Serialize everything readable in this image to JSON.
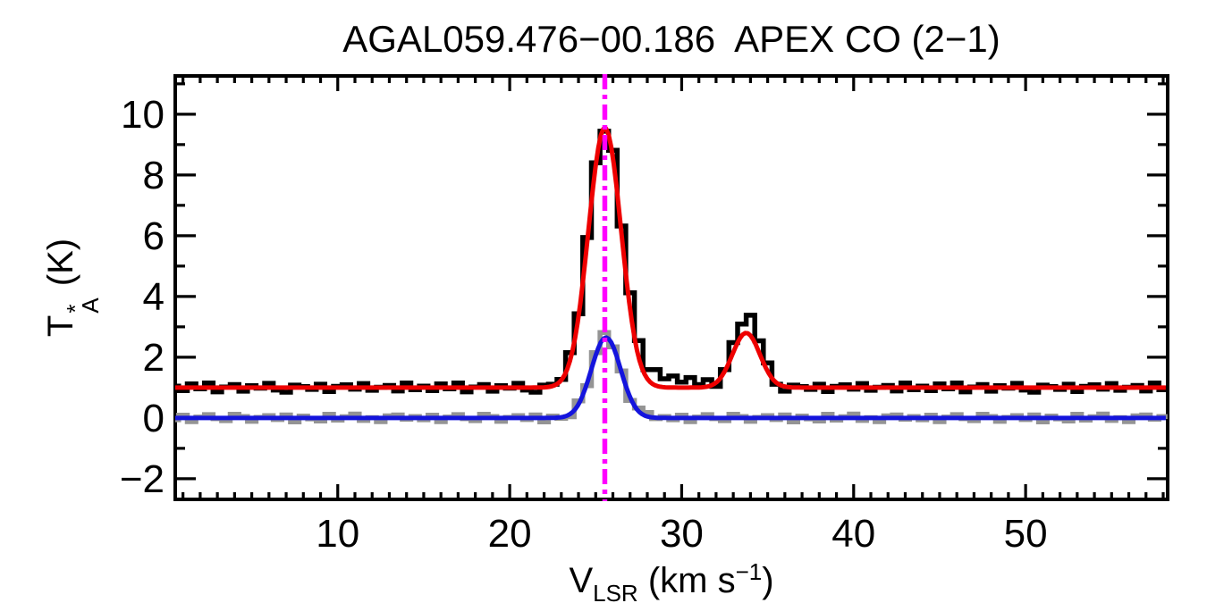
{
  "chart_data": {
    "type": "line",
    "title": "AGAL059.476−00.186  APEX CO (2−1)",
    "ylabel": {
      "base": "T",
      "sup": "*",
      "sub": "A",
      "rest": " (K)"
    },
    "xlabel": {
      "base": "V",
      "sub": "LSR",
      "mid": " (km s",
      "sup": "−1",
      "end": ")"
    },
    "xlim": [
      0.55,
      58.26
    ],
    "ylim": [
      -2.68,
      11.26
    ],
    "grid": false,
    "legend": "none",
    "x_ticks": {
      "values": [
        10,
        20,
        30,
        40,
        50
      ],
      "labels": [
        "10",
        "20",
        "30",
        "40",
        "50"
      ],
      "minor_step": 1
    },
    "y_ticks": {
      "values": [
        -2,
        0,
        2,
        4,
        6,
        8,
        10
      ],
      "labels": [
        "−2",
        "0",
        "2",
        "4",
        "6",
        "8",
        "10"
      ],
      "minor_step": 1
    },
    "marker_line": {
      "x": 25.53,
      "color": "#ff00ff",
      "style": "dash-dot"
    },
    "colors": {
      "observed": "#000000",
      "second": "#949494",
      "fit_main": "#ee0000",
      "fit_second": "#1414dd",
      "marker": "#ff00ff"
    },
    "series": [
      {
        "name": "observed-co-spectrum",
        "style": "histogram",
        "color": "#000000",
        "v_start": 0.5,
        "v_step": 0.5,
        "values": [
          1.05,
          0.9,
          1.12,
          0.96,
          1.15,
          0.86,
          1.02,
          1.1,
          0.88,
          1.06,
          0.98,
          1.14,
          0.92,
          0.85,
          1.08,
          1.03,
          0.94,
          1.11,
          0.87,
          1.04,
          1.09,
          0.95,
          1.13,
          0.91,
          1.01,
          1.07,
          0.89,
          1.15,
          0.93,
          1.05,
          0.9,
          1.12,
          0.96,
          1.15,
          0.86,
          1.02,
          1.1,
          0.88,
          1.06,
          0.98,
          1.14,
          0.92,
          0.85,
          1.08,
          1.11,
          1.27,
          2.15,
          3.43,
          5.94,
          8.4,
          9.44,
          8.81,
          6.32,
          4.12,
          2.55,
          1.59,
          1.59,
          1.29,
          1.38,
          1.18,
          1.33,
          1.1,
          1.26,
          1.04,
          1.59,
          2.48,
          3.09,
          3.38,
          2.54,
          1.81,
          1.11,
          0.88,
          1.08,
          1.03,
          0.94,
          1.11,
          0.87,
          1.04,
          1.09,
          0.95,
          1.13,
          0.91,
          1.01,
          1.07,
          0.89,
          1.15,
          0.93,
          1.05,
          0.9,
          1.12,
          0.96,
          1.15,
          0.86,
          1.02,
          1.1,
          0.88,
          1.06,
          0.98,
          1.14,
          0.92,
          0.85,
          1.08,
          1.03,
          0.94,
          1.11,
          0.87,
          1.04,
          1.09,
          0.95,
          1.13,
          0.91,
          1.01,
          1.07,
          0.89,
          1.15,
          0.93
        ]
      },
      {
        "name": "offset-co-spectrum",
        "style": "histogram",
        "color": "#949494",
        "v_start": 0.5,
        "v_step": 0.5,
        "values": [
          -0.06,
          0.09,
          -0.12,
          0.03,
          0.11,
          -0.02,
          -0.09,
          0.12,
          0.05,
          -0.11,
          0.02,
          0.08,
          -0.05,
          0.1,
          -0.13,
          0.06,
          -0.03,
          -0.1,
          0.12,
          -0.07,
          0.04,
          0.13,
          -0.08,
          0.01,
          -0.12,
          0.07,
          0.1,
          -0.04,
          0.05,
          -0.06,
          0.09,
          -0.12,
          0.03,
          0.11,
          -0.02,
          -0.09,
          0.12,
          0.05,
          -0.11,
          0.02,
          0.08,
          -0.05,
          0.1,
          -0.13,
          0.06,
          -0.01,
          0.04,
          0.56,
          1.06,
          2.15,
          2.81,
          2.34,
          1.55,
          0.58,
          0.33,
          0.18,
          -0.02,
          0.05,
          -0.06,
          0.09,
          -0.12,
          0.03,
          0.11,
          -0.02,
          -0.09,
          0.12,
          0.05,
          -0.11,
          0.02,
          0.08,
          -0.05,
          0.1,
          -0.13,
          0.06,
          -0.03,
          -0.1,
          0.12,
          -0.07,
          0.04,
          0.13,
          -0.08,
          0.01,
          -0.12,
          0.07,
          0.1,
          -0.04,
          0.05,
          -0.06,
          0.09,
          -0.12,
          0.03,
          0.11,
          -0.02,
          -0.09,
          0.12,
          0.05,
          -0.11,
          0.02,
          0.08,
          -0.05,
          0.1,
          -0.13,
          0.06,
          -0.03,
          -0.1,
          0.12,
          -0.07,
          0.04,
          0.13,
          -0.08,
          0.01,
          -0.12,
          0.07,
          0.1,
          -0.04,
          0.05
        ]
      },
      {
        "name": "gaussian-fit-observed",
        "style": "curve",
        "color": "#ee0000",
        "baseline": 1.0,
        "gaussians": [
          {
            "center": 25.53,
            "amplitude": 8.55,
            "sigma": 0.95
          },
          {
            "center": 33.75,
            "amplitude": 1.8,
            "sigma": 0.8
          }
        ]
      },
      {
        "name": "gaussian-fit-offset",
        "style": "curve",
        "color": "#1414dd",
        "baseline": 0.0,
        "gaussians": [
          {
            "center": 25.6,
            "amplitude": 2.65,
            "sigma": 0.85
          }
        ]
      }
    ]
  }
}
